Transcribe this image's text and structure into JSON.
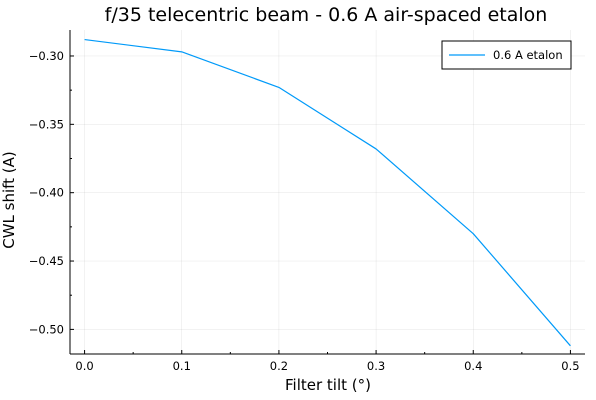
{
  "chart_data": {
    "type": "line",
    "title": "f/35 telecentric beam - 0.6 A air-spaced etalon",
    "xlabel": "Filter tilt (°)",
    "ylabel": "CWL shift (A)",
    "x_ticks": [
      0.0,
      0.1,
      0.2,
      0.3,
      0.4,
      0.5
    ],
    "x_tick_labels": [
      "0.0",
      "0.1",
      "0.2",
      "0.3",
      "0.4",
      "0.5"
    ],
    "y_ticks": [
      -0.3,
      -0.35,
      -0.4,
      -0.45,
      -0.5
    ],
    "y_tick_labels": [
      "−0.30",
      "−0.35",
      "−0.40",
      "−0.45",
      "−0.50"
    ],
    "xlim": [
      -0.015,
      0.515
    ],
    "ylim": [
      -0.518,
      -0.281
    ],
    "grid": true,
    "legend_position": "top-right",
    "series": [
      {
        "name": "0.6 A etalon",
        "color": "#009af9",
        "x": [
          0.0,
          0.1,
          0.2,
          0.3,
          0.4,
          0.5
        ],
        "y": [
          -0.288,
          -0.297,
          -0.323,
          -0.368,
          -0.43,
          -0.512
        ]
      }
    ]
  }
}
